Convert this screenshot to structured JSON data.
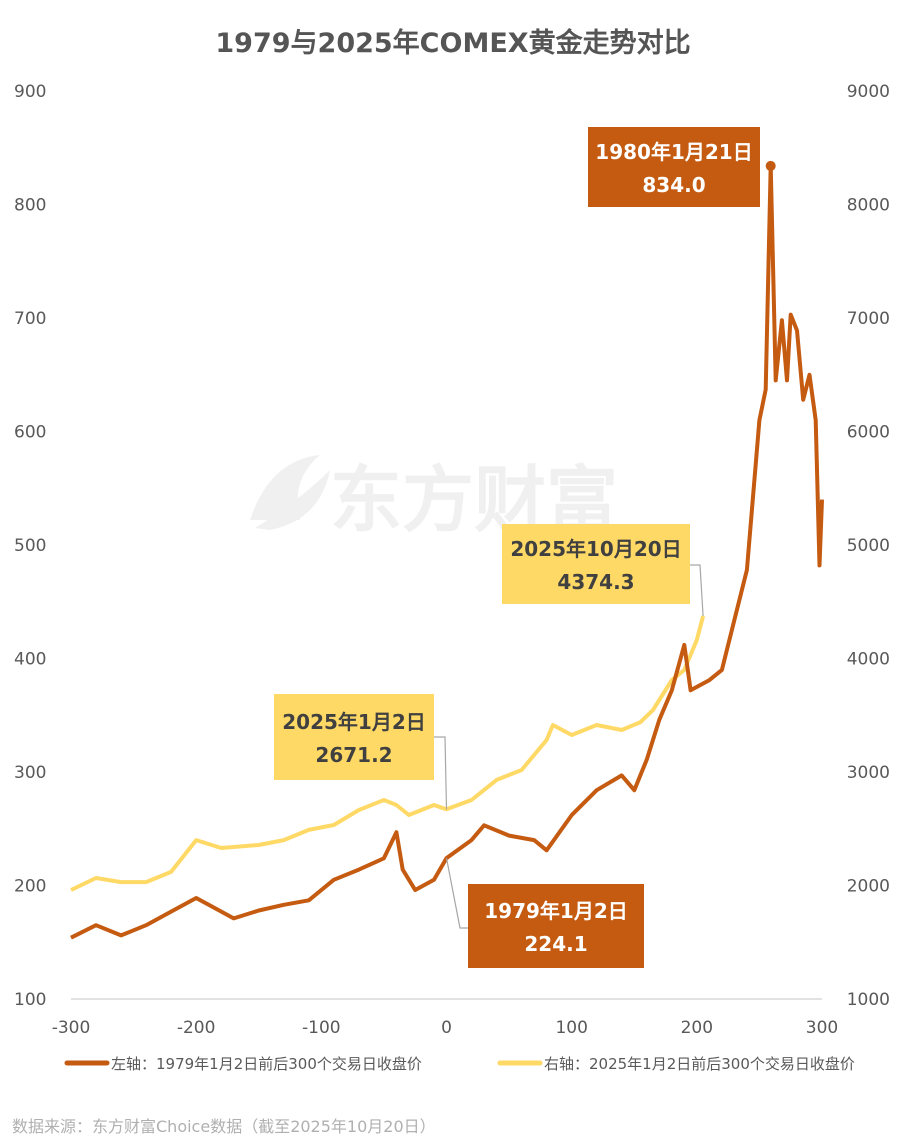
{
  "chart_data": {
    "type": "line",
    "title": "1979与2025年COMEX黄金走势对比",
    "xlim": [
      -300,
      300
    ],
    "x_ticks": [
      -300,
      -200,
      -100,
      0,
      100,
      200,
      300
    ],
    "ylim_left": [
      100,
      900
    ],
    "y_ticks_left": [
      100,
      200,
      300,
      400,
      500,
      600,
      700,
      800,
      900
    ],
    "ylim_right": [
      1000,
      9000
    ],
    "y_ticks_right": [
      1000,
      2000,
      3000,
      4000,
      5000,
      6000,
      7000,
      8000,
      9000
    ],
    "grid": false,
    "legend_position": "bottom",
    "series": [
      {
        "name": "左轴：1979年1月2日前后300个交易日收盘价",
        "axis": "left",
        "color": "#C55A11",
        "x": [
          -300,
          -280,
          -260,
          -240,
          -220,
          -200,
          -190,
          -170,
          -150,
          -130,
          -110,
          -90,
          -70,
          -50,
          -40,
          -35,
          -25,
          -10,
          0,
          20,
          30,
          50,
          70,
          80,
          100,
          120,
          140,
          150,
          160,
          170,
          180,
          190,
          195,
          210,
          220,
          230,
          240,
          250,
          255,
          259,
          263,
          268,
          272,
          275,
          280,
          285,
          290,
          295,
          298,
          300
        ],
        "y": [
          154,
          165,
          156,
          165,
          177,
          189,
          183,
          171,
          178,
          183,
          187,
          205,
          214,
          224,
          247,
          214,
          196,
          205,
          224.1,
          240,
          253,
          244,
          240,
          231,
          262,
          284,
          297,
          284,
          311,
          346,
          372,
          412,
          372,
          381,
          390,
          434,
          478,
          610,
          637,
          834.0,
          645,
          698,
          645,
          703,
          689,
          628,
          650,
          610,
          482,
          540
        ]
      },
      {
        "name": "右轴：2025年1月2日前后300个交易日收盘价",
        "axis": "right",
        "color": "#FFD966",
        "x": [
          -300,
          -280,
          -260,
          -240,
          -220,
          -200,
          -180,
          -150,
          -130,
          -110,
          -90,
          -70,
          -50,
          -40,
          -30,
          -10,
          0,
          20,
          40,
          60,
          80,
          85,
          100,
          120,
          140,
          155,
          165,
          180,
          190,
          200,
          205
        ],
        "y": [
          1960,
          2066,
          2030,
          2030,
          2120,
          2400,
          2330,
          2357,
          2400,
          2490,
          2533,
          2665,
          2753,
          2709,
          2621,
          2709,
          2671.2,
          2753,
          2930,
          3018,
          3282,
          3414,
          3326,
          3414,
          3370,
          3440,
          3546,
          3810,
          3899,
          4163,
          4374.3
        ]
      }
    ],
    "annotations": [
      {
        "series": 0,
        "x": 259,
        "line1": "1980年1月21日",
        "line2": "834.0",
        "bg": "#C55A11",
        "fg": "#FFFFFF"
      },
      {
        "series": 1,
        "x": 205,
        "line1": "2025年10月20日",
        "line2": "4374.3",
        "bg": "#FFD966",
        "fg": "#404040"
      },
      {
        "series": 1,
        "x": 0,
        "line1": "2025年1月2日",
        "line2": "2671.2",
        "bg": "#FFD966",
        "fg": "#404040"
      },
      {
        "series": 0,
        "x": 0,
        "line1": "1979年1月2日",
        "line2": "224.1",
        "bg": "#C55A11",
        "fg": "#FFFFFF"
      }
    ]
  },
  "watermark": "东方财富",
  "source": "数据来源：东方财富Choice数据（截至2025年10月20日）"
}
